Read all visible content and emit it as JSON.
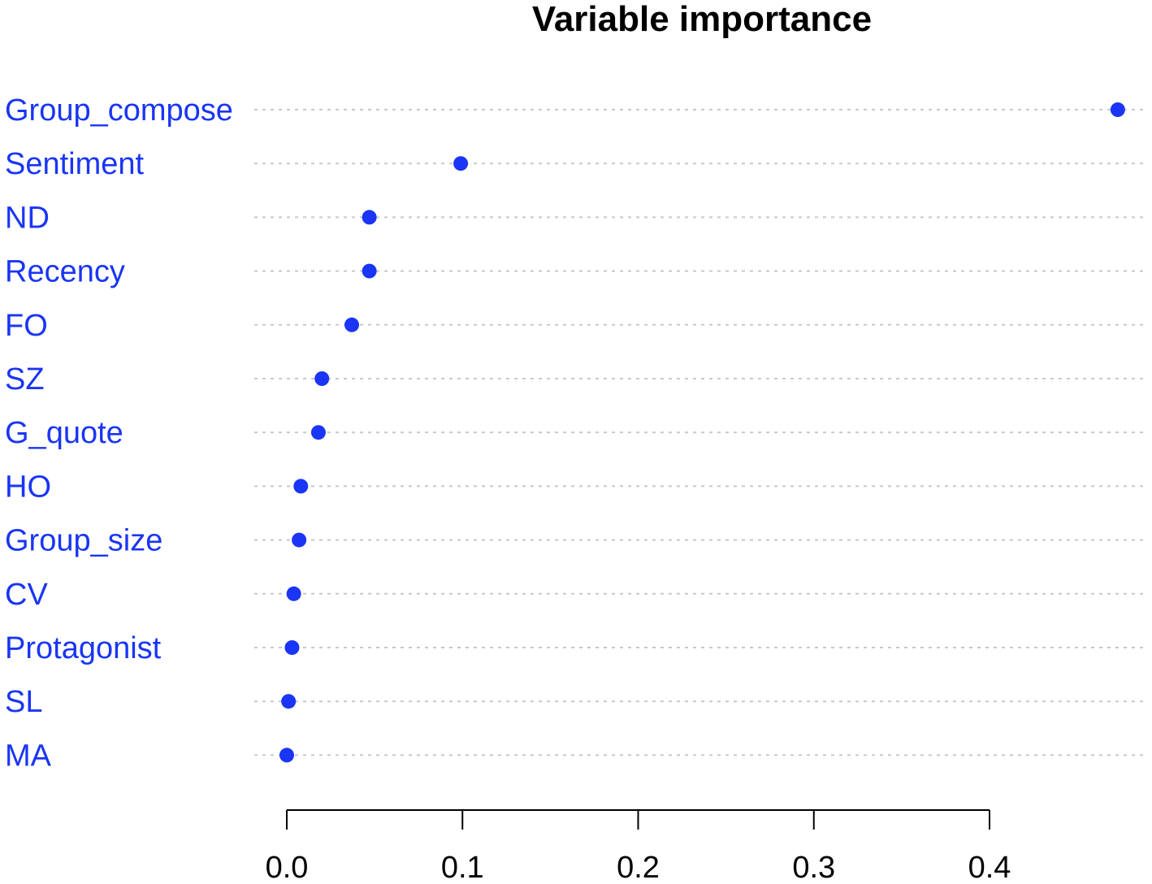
{
  "chart_data": {
    "type": "scatter",
    "title": "Variable importance",
    "xlabel": "",
    "ylabel": "",
    "categories": [
      "Group_compose",
      "Sentiment",
      "ND",
      "Recency",
      "FO",
      "SZ",
      "G_quote",
      "HO",
      "Group_size",
      "CV",
      "Protagonist",
      "SL",
      "MA"
    ],
    "values": [
      0.473,
      0.099,
      0.047,
      0.047,
      0.037,
      0.02,
      0.018,
      0.008,
      0.007,
      0.004,
      0.003,
      0.001,
      0.0
    ],
    "xlim": [
      0.0,
      0.4
    ],
    "xticks": [
      "0.0",
      "0.1",
      "0.2",
      "0.3",
      "0.4"
    ],
    "grid": "horizontal dotted guide lines",
    "legend": "none",
    "colors": {
      "points": "#1a35f5",
      "labels": "#1a35f5",
      "guides": "#c8c8c8",
      "axis": "#000000"
    }
  }
}
